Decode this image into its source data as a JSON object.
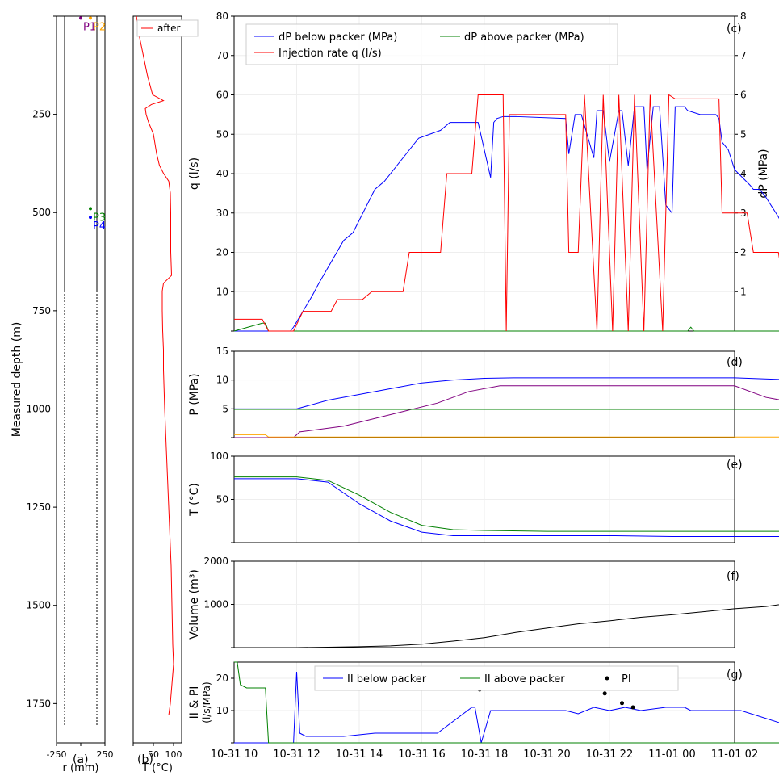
{
  "figure": {
    "panels": {
      "a": "(a)",
      "b": "(b)",
      "c": "(c)",
      "d": "(d)",
      "e": "(e)",
      "f": "(f)",
      "g": "(g)"
    }
  },
  "chart_data": [
    {
      "id": "a",
      "type": "scatter",
      "ylabel": "Measured depth (m)",
      "xlabel": "r (mm)",
      "ylim": [
        1850,
        0
      ],
      "xlim": [
        -250,
        250
      ],
      "y_ticks": [
        0,
        250,
        500,
        750,
        1000,
        1250,
        1500,
        1750
      ],
      "x_ticks": [
        -250,
        0,
        250
      ],
      "sensors": [
        {
          "name": "P1",
          "r": 0,
          "depth": 5,
          "color": "#800080"
        },
        {
          "name": "P2",
          "r": 100,
          "depth": 5,
          "color": "#ffa500"
        },
        {
          "name": "P3",
          "r": 100,
          "depth": 490,
          "color": "#008000"
        },
        {
          "name": "P4",
          "r": 100,
          "depth": 512,
          "color": "#0000ff"
        }
      ],
      "packers_depth": 240,
      "black_points_depth": [
        1560,
        1585,
        1600
      ],
      "red_points_depth": [
        1655,
        1705,
        1725,
        1790,
        1800
      ],
      "grid": true
    },
    {
      "id": "b",
      "type": "line",
      "xlabel": "T (°C)",
      "xlim": [
        0,
        120
      ],
      "x_ticks": [
        0,
        50,
        100
      ],
      "series": [
        {
          "name": "after",
          "color": "#ff0000",
          "depth": [
            0,
            50,
            100,
            150,
            200,
            215,
            225,
            235,
            250,
            270,
            300,
            350,
            380,
            400,
            420,
            450,
            500,
            600,
            660,
            680,
            700,
            750,
            800,
            850,
            900,
            1000,
            1100,
            1200,
            1300,
            1400,
            1500,
            1600,
            1650,
            1700,
            1750,
            1780
          ],
          "temp": [
            8,
            15,
            25,
            35,
            48,
            75,
            45,
            30,
            32,
            38,
            50,
            58,
            65,
            75,
            88,
            92,
            93,
            93,
            95,
            75,
            72,
            72,
            73,
            75,
            75,
            78,
            82,
            86,
            90,
            94,
            96,
            98,
            100,
            96,
            92,
            88
          ]
        }
      ],
      "grid": true
    },
    {
      "id": "c",
      "type": "line",
      "ylabel": "q (l/s)",
      "y2label": "dP (MPa)",
      "ylim": [
        0,
        80
      ],
      "y2lim": [
        0,
        8
      ],
      "y_ticks": [
        0,
        10,
        20,
        30,
        40,
        50,
        60,
        70,
        80
      ],
      "y2_ticks": [
        0,
        1,
        2,
        3,
        4,
        5,
        6,
        7,
        8
      ],
      "x_range_hours": [
        0,
        26
      ],
      "series": [
        {
          "name": "dP below packer (MPa)",
          "color": "#0000ff",
          "axis": "right",
          "t": [
            0,
            1.8,
            1.9,
            2.5,
            2.7,
            3.5,
            3.8,
            4.5,
            4.8,
            5.6,
            5.9,
            6.6,
            6.9,
            7.6,
            7.8,
            8.2,
            8.3,
            8.4,
            8.6,
            9.0,
            10.6,
            10.7,
            10.9,
            11.1,
            11.5,
            11.6,
            11.8,
            12.0,
            12.3,
            12.4,
            12.6,
            12.8,
            13.1,
            13.2,
            13.4,
            13.6,
            13.8,
            14.0,
            14.1,
            14.4,
            14.5,
            14.9,
            15.4,
            15.5,
            15.6,
            15.8,
            16.0,
            16.5,
            16.6,
            16.8,
            17.0,
            17.4,
            17.6,
            17.7,
            18.0,
            18.5,
            18.8,
            19.3,
            19.5,
            20.0,
            20.3,
            20.6,
            21.4,
            22.0,
            22.3,
            22.5,
            22.7,
            22.9,
            23.4,
            23.6,
            23.8,
            24.1
          ],
          "v": [
            0,
            0,
            0.1,
            0.9,
            1.2,
            2.3,
            2.5,
            3.6,
            3.8,
            4.6,
            4.9,
            5.1,
            5.3,
            5.3,
            5.3,
            3.9,
            5.3,
            5.4,
            5.45,
            5.45,
            5.4,
            4.5,
            5.5,
            5.5,
            4.4,
            5.6,
            5.6,
            4.3,
            5.6,
            5.6,
            4.2,
            5.7,
            5.7,
            4.1,
            5.7,
            5.7,
            3.2,
            3.0,
            5.7,
            5.7,
            5.6,
            5.5,
            5.5,
            5.4,
            4.8,
            4.6,
            4.1,
            3.7,
            3.6,
            3.6,
            3.4,
            2.9,
            2.6,
            2.6,
            2.1,
            1.3,
            0.5,
            0.05,
            0,
            0,
            0,
            0,
            0,
            0,
            0,
            0,
            0,
            0,
            0,
            0,
            0,
            0
          ]
        },
        {
          "name": "dP above packer (MPa)",
          "color": "#008000",
          "axis": "right",
          "t": [
            0,
            0.9,
            1.0,
            1.1,
            14.5,
            14.6,
            14.7,
            26
          ],
          "v": [
            0,
            0.2,
            0.2,
            0,
            0,
            0.1,
            0,
            0
          ]
        },
        {
          "name": "Injection rate q (l/s)",
          "color": "#ff0000",
          "axis": "left",
          "t": [
            0,
            0.9,
            1.1,
            1.9,
            2.2,
            3.1,
            3.3,
            4.1,
            4.4,
            5.4,
            5.6,
            6.6,
            6.8,
            7.6,
            7.8,
            8.6,
            8.7,
            8.8,
            10.6,
            10.7,
            11.0,
            11.2,
            11.6,
            11.8,
            12.1,
            12.3,
            12.6,
            12.8,
            13.1,
            13.3,
            13.7,
            13.9,
            14.1,
            15.5,
            15.6,
            16.4,
            16.6,
            17.4,
            17.6,
            18.5,
            18.7,
            19.5,
            19.7,
            20.5,
            20.7,
            21.5,
            21.7,
            22.5,
            22.7,
            26
          ],
          "v": [
            3,
            3,
            0,
            0,
            5,
            5,
            8,
            8,
            10,
            10,
            20,
            20,
            40,
            40,
            60,
            60,
            0,
            55,
            55,
            20,
            20,
            60,
            0,
            60,
            0,
            60,
            0,
            60,
            0,
            60,
            0,
            60,
            59,
            59,
            30,
            30,
            20,
            20,
            10,
            10,
            7,
            7,
            5,
            5,
            3,
            3,
            2,
            2,
            0,
            0
          ]
        }
      ],
      "grid": true
    },
    {
      "id": "d",
      "type": "line",
      "ylabel": "P (MPa)",
      "ylim": [
        0,
        15
      ],
      "y_ticks": [
        0,
        5,
        10,
        15
      ],
      "series": [
        {
          "name": "P4",
          "color": "#0000ff",
          "t": [
            0,
            2,
            3,
            5,
            6,
            7,
            8,
            9,
            16,
            18,
            19,
            20,
            21,
            22,
            23.5,
            26
          ],
          "v": [
            5,
            5,
            6.5,
            8.5,
            9.5,
            10,
            10.3,
            10.4,
            10.4,
            10,
            9,
            8,
            7,
            5.5,
            5,
            5
          ]
        },
        {
          "name": "P1",
          "color": "#800080",
          "t": [
            0,
            1.9,
            2.1,
            3.5,
            5,
            6.5,
            7.5,
            8.5,
            9,
            16,
            17,
            18,
            19,
            21,
            23,
            23.2,
            26
          ],
          "v": [
            0,
            0,
            1,
            2,
            4,
            6,
            8,
            9,
            9,
            9,
            7,
            6,
            4,
            2,
            0.5,
            0,
            0
          ]
        },
        {
          "name": "P3",
          "color": "#008000",
          "t": [
            0,
            26
          ],
          "v": [
            4.9,
            4.9
          ]
        },
        {
          "name": "P2",
          "color": "#ffa500",
          "t": [
            0,
            1,
            1.1,
            26
          ],
          "v": [
            0.5,
            0.5,
            0.1,
            0.1
          ]
        }
      ],
      "grid": true
    },
    {
      "id": "e",
      "type": "line",
      "ylabel": "T (°C)",
      "ylim": [
        0,
        100
      ],
      "y_ticks": [
        0,
        50,
        100
      ],
      "series": [
        {
          "name": "green",
          "color": "#008000",
          "t": [
            0,
            1,
            2,
            3,
            4,
            5,
            6,
            7,
            8,
            10,
            12,
            14,
            16,
            18,
            20,
            22,
            24,
            25.5
          ],
          "v": [
            76,
            76,
            76,
            72,
            55,
            35,
            20,
            15,
            14,
            13,
            13,
            13,
            13,
            13,
            14,
            16,
            20,
            25
          ]
        },
        {
          "name": "blue",
          "color": "#0000ff",
          "t": [
            0,
            1,
            2,
            3,
            4,
            5,
            6,
            7,
            8,
            10,
            12,
            14,
            16,
            18,
            20,
            22,
            24,
            25.5
          ],
          "v": [
            74,
            74,
            74,
            70,
            45,
            25,
            12,
            8,
            8,
            8,
            8,
            7,
            7,
            7,
            8,
            9,
            14,
            20
          ]
        }
      ],
      "grid": true
    },
    {
      "id": "f",
      "type": "line",
      "ylabel": "Volume (m³)",
      "ylim": [
        0,
        2000
      ],
      "y_ticks": [
        0,
        1000,
        2000
      ],
      "series": [
        {
          "name": "volume",
          "color": "#000000",
          "t": [
            0,
            2,
            3,
            4,
            5,
            6,
            7,
            8,
            9,
            10,
            11,
            12,
            13,
            14,
            15,
            16,
            17,
            18,
            20,
            22,
            25.5
          ],
          "v": [
            0,
            0,
            10,
            20,
            40,
            80,
            150,
            230,
            350,
            450,
            550,
            620,
            700,
            760,
            830,
            900,
            950,
            1050,
            1180,
            1250,
            1280
          ]
        }
      ],
      "grid": true
    },
    {
      "id": "g",
      "type": "line",
      "ylabel": "II & PI\n(l/s/MPa)",
      "ylim": [
        0,
        25
      ],
      "y_ticks": [
        0,
        10,
        20
      ],
      "series": [
        {
          "name": "II below packer",
          "color": "#0000ff",
          "t": [
            0,
            1.9,
            2.0,
            2.1,
            2.3,
            3.5,
            4.5,
            6.5,
            7.6,
            7.7,
            7.9,
            8.2,
            8.4,
            10.6,
            11.0,
            11.5,
            12.0,
            12.5,
            13.0,
            13.8,
            14.4,
            14.6,
            15.6,
            16.2,
            18.5,
            19.8,
            21.0,
            22.5,
            22.7,
            26
          ],
          "v": [
            0,
            0,
            22,
            3,
            2,
            2,
            3,
            3,
            11,
            11,
            0,
            10,
            10,
            10,
            9,
            11,
            10,
            11,
            10,
            11,
            11,
            10,
            10,
            10,
            3,
            3,
            2,
            1,
            1,
            0
          ]
        },
        {
          "name": "II above packer",
          "color": "#008000",
          "t": [
            0,
            0.1,
            0.2,
            0.4,
            0.6,
            1.0,
            1.1,
            26
          ],
          "v": [
            25,
            25,
            18,
            17,
            17,
            17,
            0,
            0
          ]
        },
        {
          "name": "PI",
          "color": "#000000",
          "points": [
            {
              "t": 7.85,
              "v": 16.5
            },
            {
              "t": 11.85,
              "v": 15.3
            },
            {
              "t": 12.4,
              "v": 12.3
            },
            {
              "t": 12.75,
              "v": 11.0
            }
          ]
        }
      ],
      "grid": true
    }
  ],
  "time_axis": {
    "labels": [
      "10-31 10",
      "10-31 12",
      "10-31 14",
      "10-31 16",
      "10-31 18",
      "10-31 20",
      "10-31 22",
      "11-01 00",
      "11-01 02"
    ],
    "ticks_hours": [
      0,
      2,
      4,
      6,
      8,
      10,
      12,
      14,
      16
    ]
  }
}
